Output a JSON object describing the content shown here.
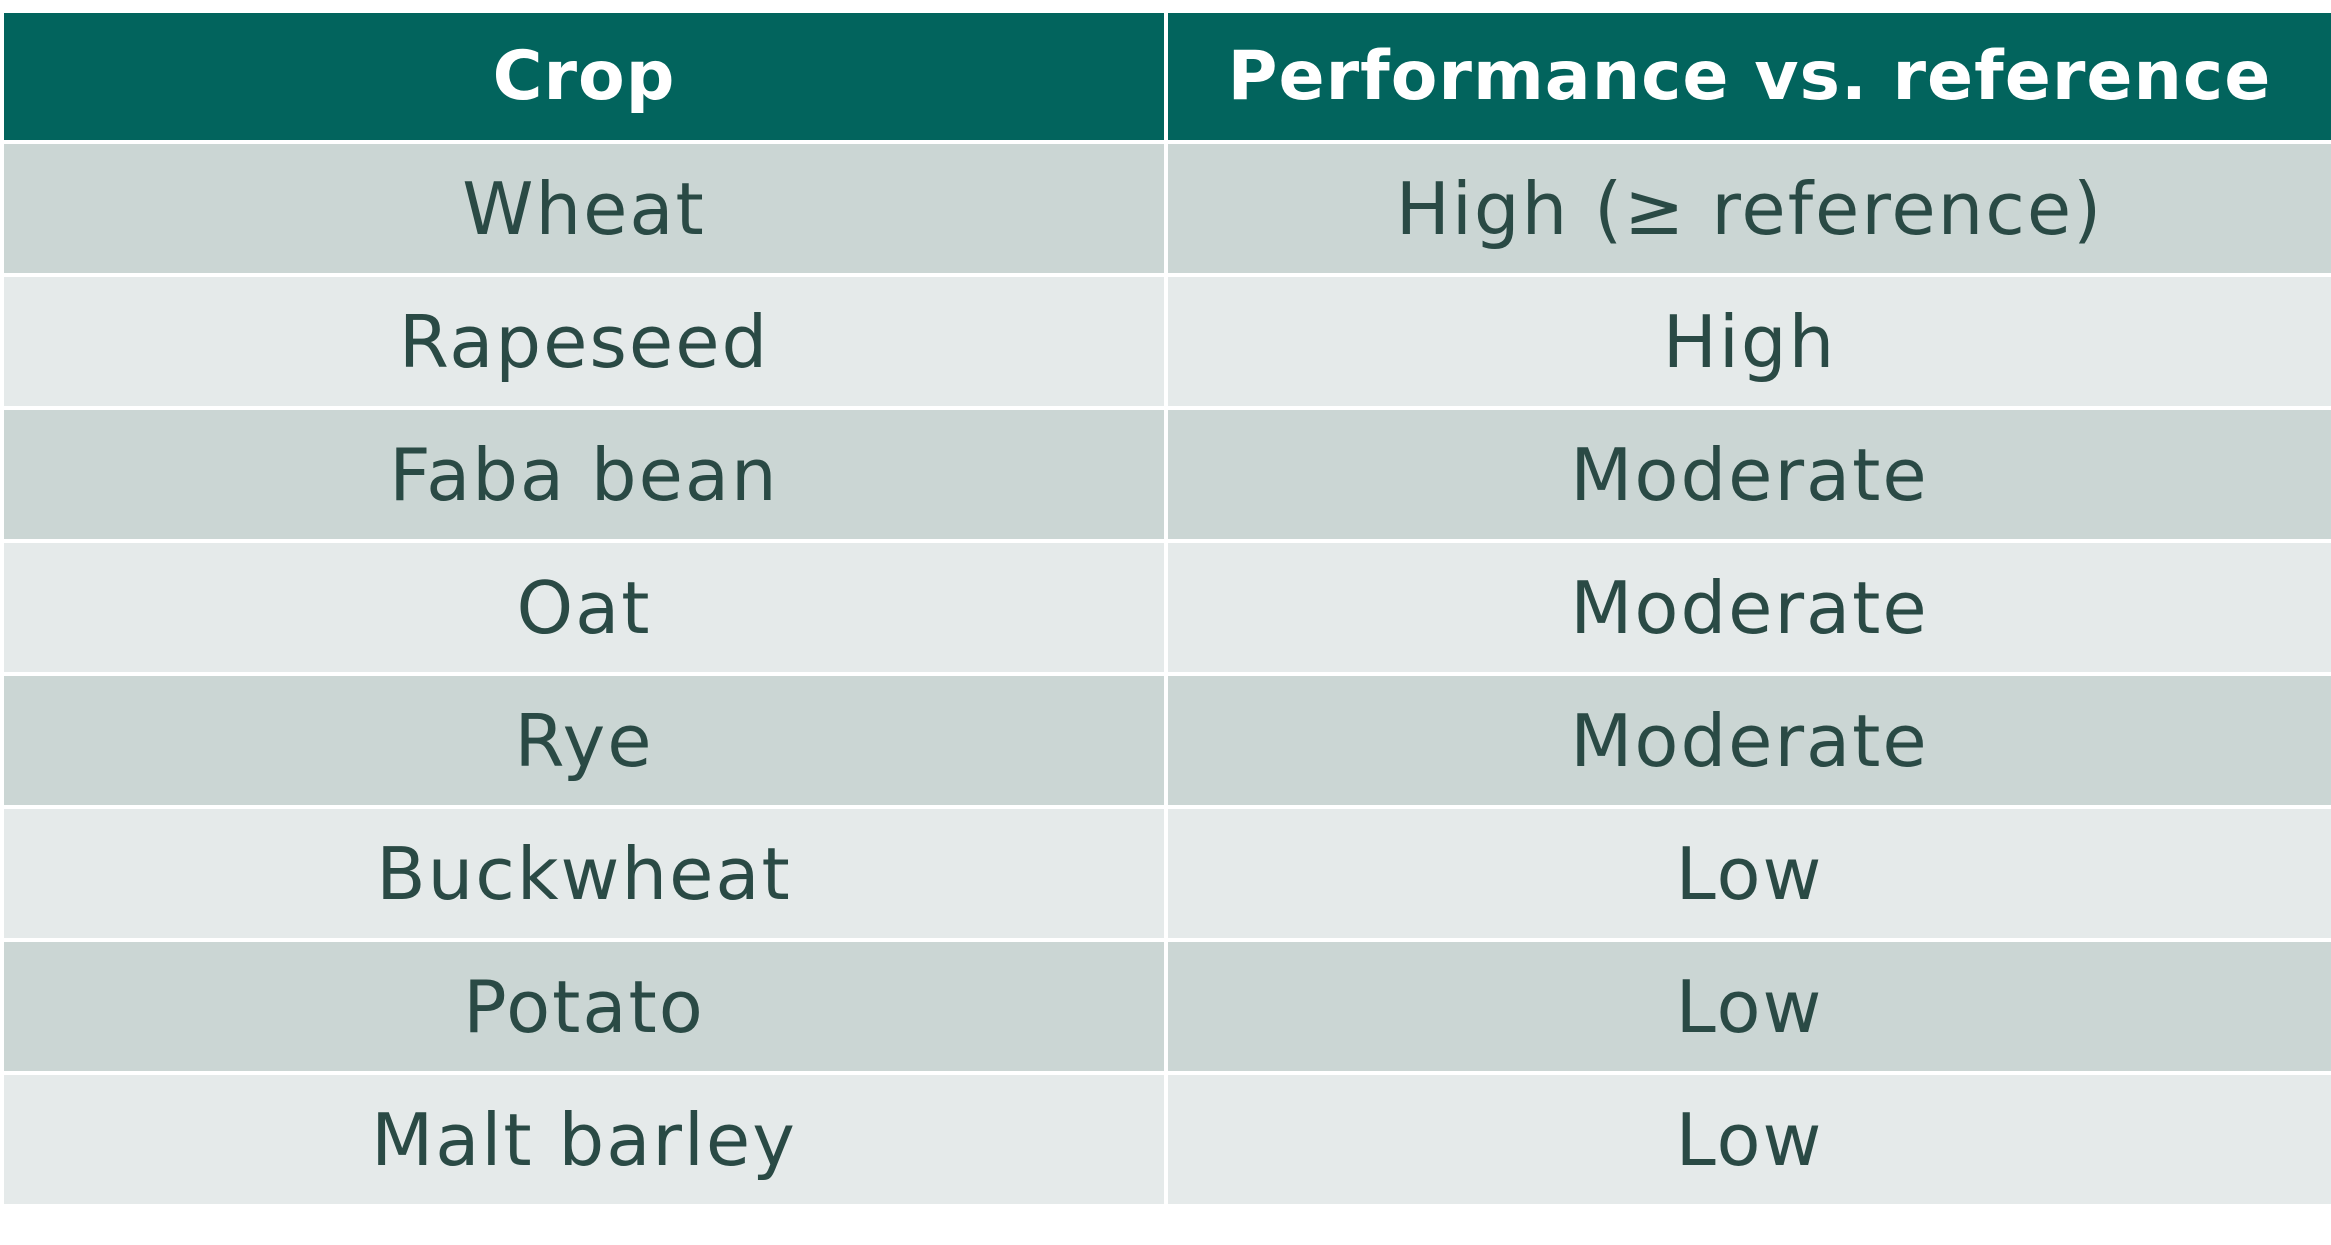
{
  "colors": {
    "header_bg": "#02645d",
    "header_fg": "#ffffff",
    "row_dark": "#cbd6d4",
    "row_light": "#e5eaea",
    "body_fg": "#2a4a45"
  },
  "table": {
    "headers": [
      "Crop",
      "Performance vs. reference"
    ],
    "rows": [
      [
        "Wheat",
        "High (≥ reference)"
      ],
      [
        "Rapeseed",
        "High"
      ],
      [
        "Faba bean",
        "Moderate"
      ],
      [
        "Oat",
        "Moderate"
      ],
      [
        "Rye",
        "Moderate"
      ],
      [
        "Buckwheat",
        "Low"
      ],
      [
        "Potato",
        "Low"
      ],
      [
        "Malt barley",
        "Low"
      ]
    ]
  }
}
